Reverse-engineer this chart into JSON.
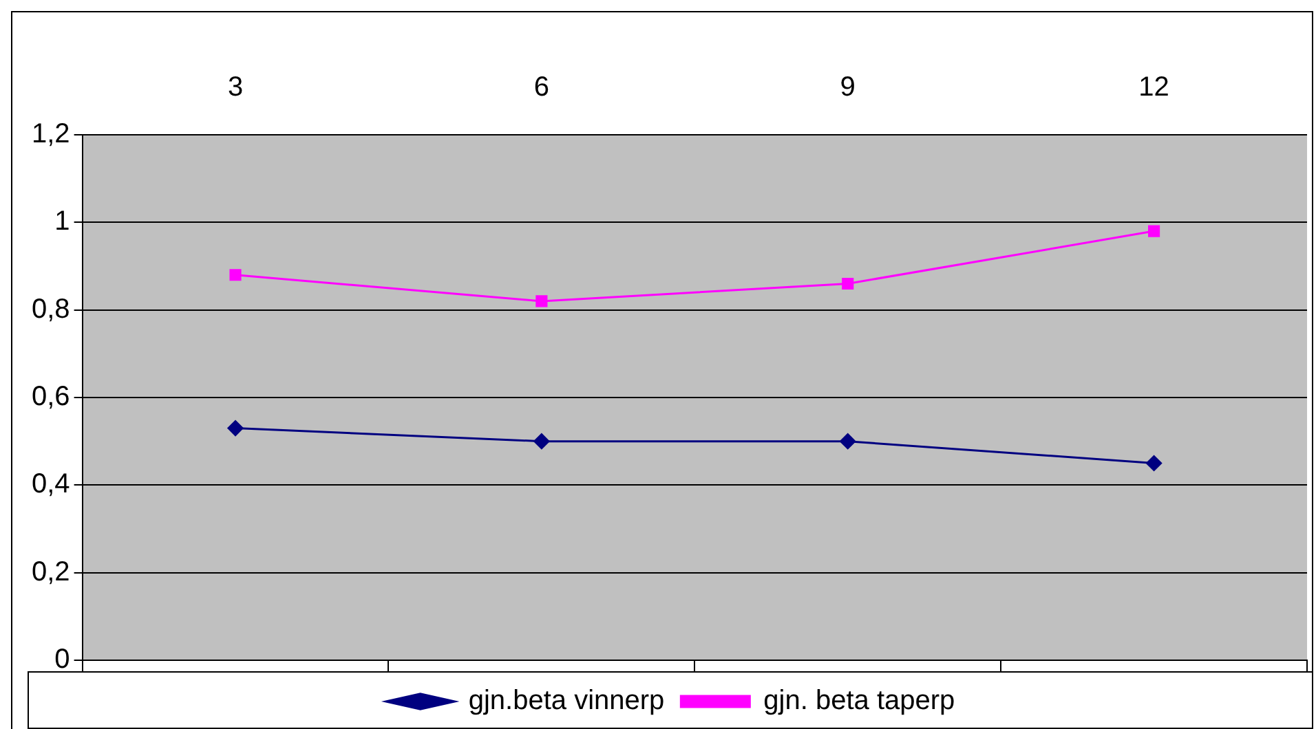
{
  "chart_data": {
    "type": "line",
    "categories": [
      "3",
      "6",
      "9",
      "12"
    ],
    "series": [
      {
        "name": "gjn.beta vinnerp",
        "color": "#000080",
        "marker": "diamond",
        "values": [
          0.53,
          0.5,
          0.5,
          0.45
        ]
      },
      {
        "name": "gjn. beta taperp",
        "color": "#ff00ff",
        "marker": "square",
        "values": [
          0.88,
          0.82,
          0.86,
          0.98
        ]
      }
    ],
    "ylim": [
      0,
      1.2
    ],
    "yticks": [
      0,
      {
        "value": 0.2,
        "label": "0,2"
      },
      {
        "value": 0.4,
        "label": "0,4"
      },
      {
        "value": 0.6,
        "label": "0,6"
      },
      {
        "value": 0.8,
        "label": "0,8"
      },
      1,
      {
        "value": 1.2,
        "label": "1,2"
      }
    ],
    "grid": "y",
    "legend": "bottom"
  }
}
